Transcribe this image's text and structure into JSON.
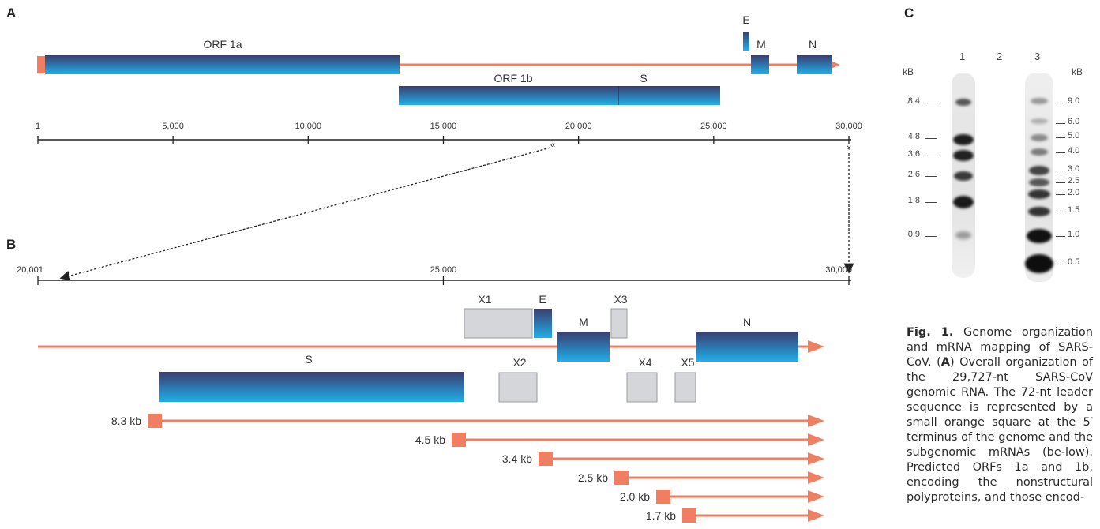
{
  "panel_a": {
    "label": "A",
    "genes": {
      "orf1a": "ORF 1a",
      "orf1b": "ORF 1b",
      "s": "S",
      "e": "E",
      "m": "M",
      "n": "N"
    },
    "axis_ticks": [
      {
        "value": 1,
        "label": "1"
      },
      {
        "value": 5000,
        "label": "5,000"
      },
      {
        "value": 10000,
        "label": "10,000"
      },
      {
        "value": 15000,
        "label": "15,000"
      },
      {
        "value": 20000,
        "label": "20,000"
      },
      {
        "value": 25000,
        "label": "25,000"
      },
      {
        "value": 30000,
        "label": "30,000"
      }
    ]
  },
  "panel_b": {
    "label": "B",
    "axis_ticks": [
      {
        "value": 20001,
        "label": "20,001"
      },
      {
        "value": 25000,
        "label": "25,000"
      },
      {
        "value": 30000,
        "label": "30,000"
      }
    ],
    "genes": {
      "s": "S",
      "e": "E",
      "m": "M",
      "n": "N"
    },
    "orfs": {
      "x1": "X1",
      "x2": "X2",
      "x3": "X3",
      "x4": "X4",
      "x5": "X5"
    },
    "mrnas": [
      "8.3 kb",
      "4.5 kb",
      "3.4 kb",
      "2.5 kb",
      "2.0 kb",
      "1.7 kb"
    ]
  },
  "panel_c": {
    "label": "C",
    "lanes": [
      "1",
      "2",
      "3"
    ],
    "unit_left": "kB",
    "unit_right": "kB",
    "markers_left": [
      "8.4",
      "4.8",
      "3.6",
      "2.6",
      "1.8",
      "0.9"
    ],
    "markers_right": [
      "9.0",
      "6.0",
      "5.0",
      "4.0",
      "3.0",
      "2.5",
      "2.0",
      "1.5",
      "1.0",
      "0.5"
    ]
  },
  "caption": {
    "lead": "Fig. 1.",
    "text_1": " Genome organization and mRNA mapping of SARS-CoV. (",
    "bold_a": "A",
    "text_2": ") Overall organization of the 29,727-nt SARS-CoV genomic RNA. The 72-nt leader sequence is represented by a small orange square at the 5′ terminus of the genome and the subgenomic mRNAs (be-low). Predicted ORFs 1a and 1b, encoding the nonstructural polyproteins, and those encod-"
  }
}
